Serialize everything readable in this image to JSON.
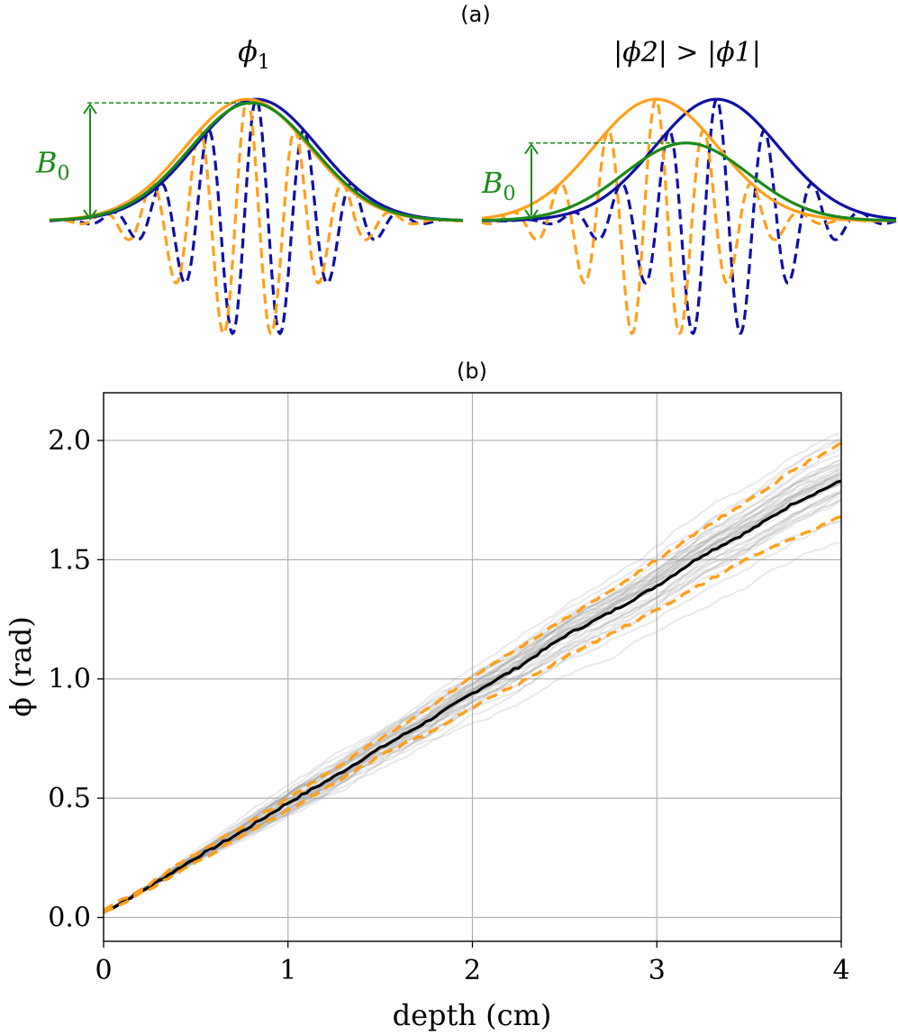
{
  "panel_a": {
    "label": "(a)",
    "left_title_sym": "ϕ",
    "left_title_sub": "1",
    "right_title": "|ϕ2| > |ϕ1|",
    "b0_sym": "B",
    "b0_sub": "0",
    "colors": {
      "blue": "#0f0fa5",
      "orange": "#ff9f1a",
      "green": "#1a8a1a"
    }
  },
  "panel_b": {
    "label": "(b)"
  },
  "chart_data": [
    {
      "type": "line",
      "title": "(a)",
      "subplots": [
        {
          "title": "ϕ1",
          "series": [
            {
              "role": "envelope",
              "color": "blue",
              "center": 0.0,
              "amplitude": 1.0,
              "width": 1.0
            },
            {
              "role": "carrier",
              "color": "blue",
              "center": 0.0,
              "amplitude": 1.0,
              "width": 1.0,
              "phase_cycles": 0.0
            },
            {
              "role": "envelope",
              "color": "orange",
              "center": -0.13,
              "amplitude": 1.0,
              "width": 1.0
            },
            {
              "role": "carrier",
              "color": "orange",
              "center": -0.13,
              "amplitude": 1.0,
              "width": 1.0,
              "phase_cycles": 0.0
            },
            {
              "role": "envelope",
              "color": "green",
              "center": -0.07,
              "amplitude": 0.97,
              "width": 1.0
            }
          ],
          "annotation": "B0",
          "xlim": [
            -3.0,
            3.0
          ],
          "ylim": [
            -1.15,
            1.12
          ]
        },
        {
          "title": "|ϕ2| > |ϕ1|",
          "series": [
            {
              "role": "envelope",
              "color": "blue",
              "center": 0.0,
              "amplitude": 1.0,
              "width": 1.0
            },
            {
              "role": "carrier",
              "color": "blue",
              "center": 0.0,
              "amplitude": 1.0,
              "width": 1.0,
              "phase_cycles": 0.0
            },
            {
              "role": "envelope",
              "color": "orange",
              "center": -0.88,
              "amplitude": 1.0,
              "width": 1.0
            },
            {
              "role": "carrier",
              "color": "orange",
              "center": -0.88,
              "amplitude": 1.0,
              "width": 1.0,
              "phase_cycles": 0.0
            },
            {
              "role": "envelope",
              "color": "green",
              "center": -0.44,
              "amplitude": 0.64,
              "width": 1.0
            }
          ],
          "annotation": "B0",
          "xlim": [
            -3.4,
            2.6
          ],
          "ylim": [
            -1.15,
            1.12
          ]
        }
      ]
    },
    {
      "type": "line",
      "title": "(b)",
      "xlabel": "depth (cm)",
      "ylabel": "ϕ (rad)",
      "xlim": [
        0,
        4
      ],
      "ylim": [
        -0.1,
        2.2
      ],
      "xticks": [
        0,
        1,
        2,
        3,
        4
      ],
      "xtick_labels": [
        "0",
        "1",
        "2",
        "3",
        "4"
      ],
      "yticks": [
        0.0,
        0.5,
        1.0,
        1.5,
        2.0
      ],
      "ytick_labels": [
        "0.0",
        "0.5",
        "1.0",
        "1.5",
        "2.0"
      ],
      "grid": true,
      "x": [
        0.0,
        0.25,
        0.5,
        0.75,
        1.0,
        1.25,
        1.5,
        1.75,
        2.0,
        2.25,
        2.5,
        2.75,
        3.0,
        3.25,
        3.5,
        3.75,
        4.0
      ],
      "series": [
        {
          "role": "mean",
          "color": "#000000",
          "style": "solid",
          "values": [
            0.02,
            0.13,
            0.25,
            0.36,
            0.48,
            0.59,
            0.71,
            0.82,
            0.94,
            1.05,
            1.18,
            1.28,
            1.39,
            1.52,
            1.62,
            1.74,
            1.83
          ]
        },
        {
          "role": "upper",
          "color": "#ff9f1a",
          "style": "dashed",
          "values": [
            0.03,
            0.14,
            0.27,
            0.38,
            0.5,
            0.62,
            0.75,
            0.87,
            1.01,
            1.13,
            1.25,
            1.37,
            1.5,
            1.63,
            1.75,
            1.88,
            1.99
          ]
        },
        {
          "role": "lower",
          "color": "#ff9f1a",
          "style": "dashed",
          "values": [
            0.02,
            0.12,
            0.23,
            0.34,
            0.45,
            0.56,
            0.68,
            0.77,
            0.88,
            0.98,
            1.09,
            1.19,
            1.29,
            1.4,
            1.51,
            1.59,
            1.68
          ]
        }
      ],
      "trials": {
        "color": "#999999",
        "count": 40,
        "spread_fraction": 0.065
      }
    }
  ]
}
